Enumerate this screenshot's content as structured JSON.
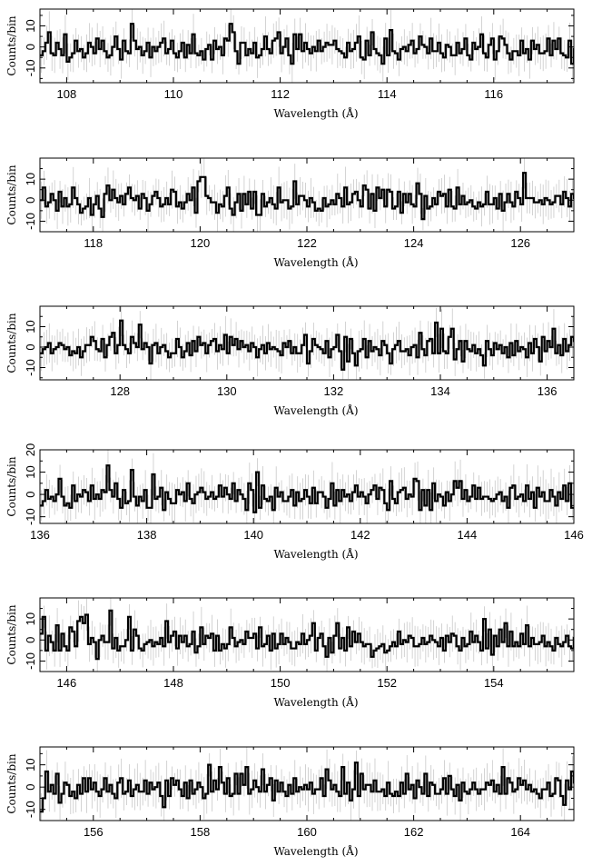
{
  "chart_data": [
    {
      "type": "line",
      "style": "step-histogram with error bars",
      "xlabel": "Wavelength (Å)",
      "ylabel": "Counts/bin",
      "xlim": [
        107.5,
        117.5
      ],
      "ylim": [
        -17,
        18
      ],
      "xticks": [
        108,
        110,
        112,
        114,
        116
      ],
      "yticks": [
        -10,
        0,
        10
      ],
      "bin_width": 0.05,
      "values": [
        -4,
        -2,
        2,
        7,
        -3,
        -4,
        2,
        -1,
        -4,
        6,
        -7,
        -5,
        -3,
        3,
        -2,
        -1,
        -5,
        -3,
        2,
        0,
        -3,
        4,
        -1,
        3,
        -2,
        -5,
        -4,
        0,
        5,
        -1,
        -6,
        3,
        -2,
        -3,
        11,
        3,
        -1,
        0,
        -4,
        -2,
        2,
        -5,
        0,
        -2,
        0,
        2,
        4,
        -3,
        -1,
        3,
        -3,
        -5,
        -2,
        2,
        -5,
        1,
        -3,
        6,
        -3,
        -4,
        -2,
        -6,
        -1,
        1,
        -6,
        3,
        -1,
        0,
        -4,
        4,
        3,
        11,
        7,
        -2,
        -8,
        2,
        2,
        -4,
        -1,
        -3,
        2,
        -5,
        -4,
        -1,
        5,
        -1,
        -3,
        3,
        4,
        7,
        -3,
        0,
        4,
        -4,
        -8,
        6,
        -1,
        6,
        -2,
        2,
        -1,
        -3,
        0,
        -2,
        3,
        -2,
        0,
        2,
        1,
        1,
        3,
        -1,
        -2,
        -3,
        -5,
        2,
        -2,
        -1,
        2,
        5,
        -5,
        -6,
        3,
        -4,
        7,
        -1,
        -3,
        -4,
        -8,
        4,
        -4,
        8,
        -2,
        -3,
        -6,
        -1,
        0,
        -2,
        1,
        3,
        -3,
        -1,
        5,
        1,
        0,
        -3,
        4,
        -2,
        -2,
        2,
        -3,
        -5,
        1,
        0,
        -4,
        -4,
        2,
        -3,
        -1,
        4,
        -4,
        -6,
        2,
        -1,
        0,
        6,
        -3,
        -5,
        1,
        4,
        -6,
        -2,
        5,
        4,
        1,
        -3,
        -6,
        -2,
        -2,
        -4,
        3,
        -3,
        -1,
        -6,
        3,
        -1,
        1,
        -3,
        -3,
        -2,
        4,
        -4,
        3,
        -1,
        4,
        -3,
        -4,
        -5,
        3,
        -8,
        -1,
        4,
        -2,
        4,
        0,
        -4,
        5,
        -2,
        0,
        7,
        -2,
        -5,
        -2,
        3,
        5,
        4,
        0,
        2,
        6,
        -2,
        -3,
        1,
        3,
        7,
        5,
        -3,
        3,
        -5,
        -3,
        7,
        -2
      ]
    },
    {
      "type": "line",
      "style": "step-histogram with error bars",
      "xlabel": "Wavelength (Å)",
      "ylabel": "Counts/bin",
      "xlim": [
        117,
        127
      ],
      "ylim": [
        -15,
        20
      ],
      "xticks": [
        118,
        120,
        122,
        124,
        126
      ],
      "yticks": [
        -10,
        0,
        10
      ],
      "bin_width": 0.05,
      "values": [
        0,
        6,
        -3,
        -1,
        3,
        0,
        -5,
        4,
        -3,
        1,
        -3,
        -2,
        6,
        1,
        -2,
        -6,
        -4,
        -3,
        1,
        -7,
        -2,
        2,
        -4,
        -8,
        3,
        7,
        0,
        5,
        1,
        -1,
        2,
        -2,
        3,
        6,
        1,
        0,
        2,
        -4,
        3,
        1,
        -5,
        -2,
        2,
        4,
        1,
        -3,
        -2,
        1,
        -2,
        5,
        4,
        -3,
        -1,
        -4,
        -1,
        3,
        0,
        6,
        -6,
        9,
        11,
        11,
        2,
        1,
        -1,
        -1,
        -6,
        -2,
        -3,
        2,
        6,
        -4,
        -7,
        -1,
        3,
        -5,
        3,
        -2,
        4,
        -4,
        4,
        -7,
        -7,
        3,
        -3,
        -1,
        1,
        -2,
        -4,
        6,
        -1,
        0,
        0,
        -4,
        -3,
        9,
        -2,
        2,
        2,
        0,
        -3,
        1,
        -1,
        -5,
        -4,
        -5,
        1,
        -3,
        -2,
        0,
        -2,
        3,
        1,
        -3,
        6,
        -2,
        -1,
        3,
        4,
        0,
        -3,
        7,
        5,
        -4,
        3,
        -5,
        6,
        1,
        5,
        -3,
        5,
        4,
        -4,
        -3,
        4,
        -6,
        3,
        -1,
        3,
        -2,
        -3,
        8,
        3,
        -9,
        2,
        -4,
        -3,
        1,
        -2,
        4,
        2,
        3,
        -3,
        5,
        -3,
        -4,
        6,
        -2,
        2,
        -2,
        -1,
        0,
        -3,
        -4,
        -1,
        -3,
        -2,
        4,
        -2,
        -2,
        1,
        -4,
        3,
        -5,
        -1,
        3,
        -1,
        -3,
        4,
        1,
        -2,
        13,
        1,
        1,
        1,
        -1,
        -1,
        0,
        -2,
        1,
        0,
        -2,
        -1,
        2,
        2,
        -2,
        4,
        1,
        -3,
        3,
        1,
        -4,
        4,
        -1,
        5,
        -3,
        0,
        3,
        -2,
        -2,
        1,
        -5,
        2,
        -4,
        -1,
        4,
        -2,
        1,
        1,
        -5,
        2,
        -2,
        3,
        -6,
        2,
        -3,
        3,
        -3,
        2,
        -1,
        3,
        -1,
        2,
        0,
        -2
      ]
    },
    {
      "type": "line",
      "style": "step-histogram with error bars",
      "xlabel": "Wavelength (Å)",
      "ylabel": "Counts/bin",
      "xlim": [
        126.5,
        136.5
      ],
      "ylim": [
        -16,
        20
      ],
      "xticks": [
        128,
        130,
        132,
        134,
        136
      ],
      "yticks": [
        -10,
        0,
        10
      ],
      "bin_width": 0.05,
      "values": [
        -3,
        -1,
        0,
        2,
        -3,
        -1,
        0,
        2,
        1,
        -1,
        0,
        -4,
        -2,
        -3,
        0,
        -5,
        -2,
        1,
        1,
        5,
        3,
        -1,
        -2,
        4,
        -5,
        1,
        5,
        7,
        -3,
        1,
        13,
        1,
        -1,
        -3,
        5,
        2,
        0,
        11,
        -1,
        2,
        0,
        -8,
        1,
        2,
        -3,
        0,
        1,
        -2,
        -5,
        -3,
        -3,
        4,
        0,
        -5,
        -2,
        2,
        -4,
        3,
        -2,
        5,
        1,
        2,
        -3,
        1,
        3,
        4,
        -2,
        1,
        -1,
        6,
        -3,
        5,
        1,
        4,
        -1,
        3,
        0,
        1,
        -2,
        2,
        0,
        -5,
        -1,
        1,
        -3,
        2,
        -1,
        0,
        -1,
        -2,
        -4,
        2,
        0,
        3,
        -3,
        0,
        -3,
        -3,
        1,
        6,
        -8,
        -2,
        4,
        1,
        0,
        -1,
        -3,
        3,
        -5,
        -1,
        0,
        6,
        -2,
        -11,
        5,
        -7,
        4,
        -3,
        -9,
        -2,
        -1,
        4,
        -5,
        3,
        -2,
        0,
        -1,
        -4,
        3,
        1,
        -3,
        -8,
        -1,
        1,
        3,
        -2,
        -2,
        -1,
        -4,
        0,
        1,
        -5,
        7,
        -1,
        -4,
        3,
        4,
        -3,
        12,
        -3,
        9,
        -2,
        -3,
        5,
        9,
        -6,
        -1,
        3,
        -7,
        3,
        -1,
        -2,
        1,
        -3,
        -1,
        -4,
        -9,
        3,
        -1,
        -4,
        2,
        -1,
        1,
        -3,
        0,
        -5,
        2,
        -4,
        3,
        -2,
        0,
        -1,
        -5,
        2,
        -3,
        4,
        0,
        -7,
        5,
        -2,
        3,
        0,
        9,
        -3,
        1,
        -4,
        4,
        -2,
        1,
        5,
        3,
        -1,
        -3,
        3,
        0,
        -5,
        5,
        3,
        -4,
        2,
        -6,
        10,
        -2,
        -3,
        2,
        4,
        1,
        -2,
        4,
        3,
        -6,
        5,
        -1,
        0,
        1,
        -4,
        -1,
        3,
        -3,
        -1,
        5,
        -5,
        1,
        7,
        -7,
        6,
        3,
        -7,
        4,
        -4,
        7,
        -1,
        -1,
        -2,
        4,
        6
      ]
    },
    {
      "type": "line",
      "style": "step-histogram with error bars",
      "xlabel": "Wavelength (Å)",
      "ylabel": "Counts/bin",
      "xlim": [
        136,
        146
      ],
      "ylim": [
        -13,
        20
      ],
      "xticks": [
        136,
        138,
        140,
        142,
        144,
        146
      ],
      "yticks": [
        -10,
        0,
        10,
        20
      ],
      "bin_width": 0.05,
      "values": [
        -5,
        -3,
        2,
        -2,
        -1,
        -3,
        0,
        7,
        -1,
        -5,
        -4,
        -6,
        4,
        -3,
        0,
        -1,
        2,
        1,
        -3,
        4,
        -2,
        0,
        -2,
        2,
        1,
        13,
        2,
        -1,
        5,
        -2,
        -6,
        2,
        -4,
        -3,
        11,
        -1,
        -5,
        -1,
        -3,
        2,
        -6,
        -6,
        9,
        -2,
        -1,
        3,
        -7,
        1,
        -2,
        -4,
        -4,
        2,
        0,
        1,
        -3,
        5,
        -2,
        -4,
        0,
        1,
        3,
        1,
        -2,
        -1,
        1,
        -2,
        -1,
        4,
        -1,
        3,
        0,
        -2,
        5,
        -3,
        2,
        0,
        -2,
        -7,
        5,
        2,
        -8,
        10,
        -6,
        4,
        -2,
        -3,
        -1,
        -7,
        3,
        -1,
        1,
        -3,
        -3,
        -1,
        2,
        -5,
        1,
        -3,
        -2,
        2,
        -1,
        -4,
        3,
        -4,
        1,
        1,
        -1,
        -6,
        -2,
        5,
        -5,
        2,
        -3,
        2,
        -1,
        0,
        -3,
        1,
        4,
        -1,
        1,
        -1,
        -4,
        0,
        2,
        4,
        -2,
        3,
        2,
        -4,
        -7,
        6,
        -2,
        -4,
        1,
        2,
        3,
        -2,
        0,
        -1,
        7,
        6,
        -7,
        2,
        -5,
        2,
        -7,
        5,
        -3,
        0,
        -1,
        -5,
        1,
        -3,
        0,
        6,
        3,
        6,
        -2,
        2,
        -3,
        -1,
        4,
        -2,
        3,
        -2,
        -1,
        -1,
        -2,
        -3,
        -2,
        0,
        1,
        -3,
        -1,
        -6,
        3,
        4,
        -2,
        -1,
        0,
        -3,
        4,
        -2,
        1,
        -6,
        3,
        -1,
        1,
        -3,
        -3,
        2,
        -1,
        -5,
        1,
        -2,
        4,
        -3,
        5,
        -6,
        -6,
        3,
        -1,
        1,
        -2,
        10,
        -1,
        3,
        1,
        -2,
        4,
        -1,
        1,
        2,
        5,
        -1,
        -3,
        4,
        7,
        -5,
        4,
        -2,
        5,
        2,
        8
      ]
    },
    {
      "type": "line",
      "style": "step-histogram with error bars",
      "xlabel": "Wavelength (Å)",
      "ylabel": "Counts/bin",
      "xlim": [
        145.5,
        155.5
      ],
      "ylim": [
        -15,
        20
      ],
      "xticks": [
        146,
        148,
        150,
        152,
        154
      ],
      "yticks": [
        -10,
        0,
        10
      ],
      "bin_width": 0.05,
      "values": [
        3,
        11,
        -5,
        2,
        -1,
        -5,
        7,
        -5,
        3,
        -3,
        -5,
        6,
        4,
        -3,
        9,
        11,
        8,
        12,
        -2,
        1,
        -1,
        -9,
        0,
        2,
        -1,
        -1,
        14,
        -4,
        1,
        -5,
        -3,
        -3,
        0,
        11,
        -5,
        5,
        2,
        -4,
        -5,
        -2,
        -1,
        0,
        -3,
        -1,
        -2,
        1,
        -3,
        9,
        -1,
        2,
        4,
        -4,
        2,
        -1,
        2,
        -3,
        -2,
        4,
        -6,
        -3,
        6,
        -2,
        2,
        1,
        3,
        -5,
        2,
        -5,
        -2,
        -4,
        -2,
        6,
        1,
        -3,
        -1,
        0,
        -2,
        4,
        1,
        1,
        3,
        -4,
        6,
        -3,
        -2,
        2,
        -5,
        3,
        -4,
        -2,
        3,
        -2,
        1,
        -1,
        -4,
        -4,
        -1,
        -2,
        3,
        -2,
        0,
        2,
        8,
        -5,
        1,
        3,
        -3,
        -8,
        1,
        -6,
        2,
        8,
        -4,
        1,
        -5,
        6,
        -3,
        4,
        -1,
        3,
        -1,
        -3,
        -2,
        -2,
        -8,
        -5,
        -4,
        -3,
        -2,
        -6,
        -5,
        -3,
        -1,
        -3,
        4,
        -2,
        0,
        -1,
        2,
        1,
        -3,
        -3,
        -2,
        1,
        -2,
        -1,
        2,
        0,
        -1,
        -3,
        1,
        -5,
        2,
        -1,
        3,
        2,
        -3,
        -5,
        1,
        -3,
        -2,
        4,
        -1,
        2,
        -1,
        -5,
        10,
        -4,
        5,
        -7,
        2,
        -3,
        5,
        -1,
        8,
        -3,
        4,
        -3,
        -1,
        -3,
        3,
        -2,
        7,
        -3,
        1,
        -2,
        -2,
        -1,
        2,
        -3,
        -1,
        -3,
        -5,
        1,
        -2,
        -3,
        -1,
        2,
        -3,
        -4,
        1,
        -1,
        -3,
        -2,
        -5,
        3,
        -2,
        -8,
        1,
        -1,
        -2,
        2,
        -2,
        -3,
        3,
        -1,
        -4,
        3,
        -2,
        2,
        -1,
        -3,
        -1,
        -3,
        -2,
        -4,
        -10,
        -13,
        -2,
        7,
        1,
        -5,
        3,
        -6,
        3,
        -2,
        2,
        -5,
        -4,
        -4,
        4,
        -3,
        -4,
        -5,
        2,
        -4,
        3,
        -5
      ]
    },
    {
      "type": "line",
      "style": "step-histogram with error bars",
      "xlabel": "Wavelength (Å)",
      "ylabel": "Counts/bin",
      "xlim": [
        155,
        165
      ],
      "ylim": [
        -15,
        18
      ],
      "xticks": [
        156,
        158,
        160,
        162,
        164
      ],
      "yticks": [
        -10,
        0,
        10
      ],
      "bin_width": 0.05,
      "values": [
        -11,
        -5,
        7,
        -2,
        1,
        -3,
        6,
        -7,
        -3,
        2,
        1,
        -4,
        -2,
        -5,
        1,
        -3,
        4,
        -2,
        4,
        -1,
        2,
        -2,
        -4,
        -1,
        4,
        -2,
        1,
        -3,
        -5,
        2,
        4,
        -3,
        -2,
        3,
        -4,
        -1,
        1,
        -2,
        -2,
        3,
        -3,
        2,
        -1,
        0,
        2,
        -4,
        -9,
        3,
        -4,
        4,
        1,
        3,
        -1,
        -4,
        2,
        -5,
        3,
        -3,
        -1,
        2,
        0,
        -5,
        -3,
        10,
        -2,
        3,
        -1,
        9,
        2,
        -3,
        4,
        -4,
        -3,
        6,
        -3,
        6,
        1,
        9,
        -3,
        -1,
        3,
        0,
        -2,
        8,
        -2,
        1,
        4,
        -6,
        3,
        -2,
        2,
        -2,
        -4,
        1,
        -3,
        4,
        -2,
        0,
        -1,
        1,
        -1,
        2,
        -3,
        -1,
        -1,
        4,
        -4,
        8,
        3,
        -1,
        1,
        -2,
        -4,
        9,
        -3,
        2,
        -6,
        -1,
        11,
        -4,
        6,
        -1,
        1,
        1,
        -2,
        3,
        -2,
        -2,
        -1,
        -4,
        2,
        -3,
        -4,
        -2,
        -4,
        2,
        -3,
        6,
        -1,
        1,
        -5,
        3,
        0,
        -3,
        6,
        -4,
        2,
        1,
        -3,
        -3,
        -1,
        4,
        -3,
        5,
        -1,
        -4,
        1,
        -6,
        2,
        -2,
        -3,
        -1,
        2,
        -1,
        -3,
        -1,
        -1,
        2,
        1,
        3,
        -2,
        1,
        -3,
        9,
        -3,
        4,
        2,
        -2,
        -1,
        4,
        1,
        3,
        -1,
        1,
        -2,
        -1,
        -3,
        -5,
        -1,
        -1,
        2,
        -4,
        -3,
        4,
        3,
        -4,
        -8,
        3,
        -1,
        7,
        2,
        -3,
        -4,
        -6,
        5,
        -3,
        1,
        -4,
        -2,
        -2,
        -3,
        -1,
        4,
        -1,
        2,
        3,
        -3,
        6,
        2,
        -1,
        -1,
        3,
        2,
        -3,
        -3,
        1,
        -5,
        2,
        4,
        -1,
        -4,
        3,
        -2,
        1,
        -3,
        -3,
        4,
        5,
        -1,
        4,
        -2,
        2,
        -4,
        -6,
        5,
        -1,
        -2,
        -4,
        -3,
        1,
        -1,
        3,
        -3,
        2,
        -2,
        2,
        4,
        -1,
        -2,
        1,
        -1,
        -3,
        2,
        1,
        3,
        -2,
        3,
        -4,
        0,
        -2,
        1
      ]
    }
  ]
}
